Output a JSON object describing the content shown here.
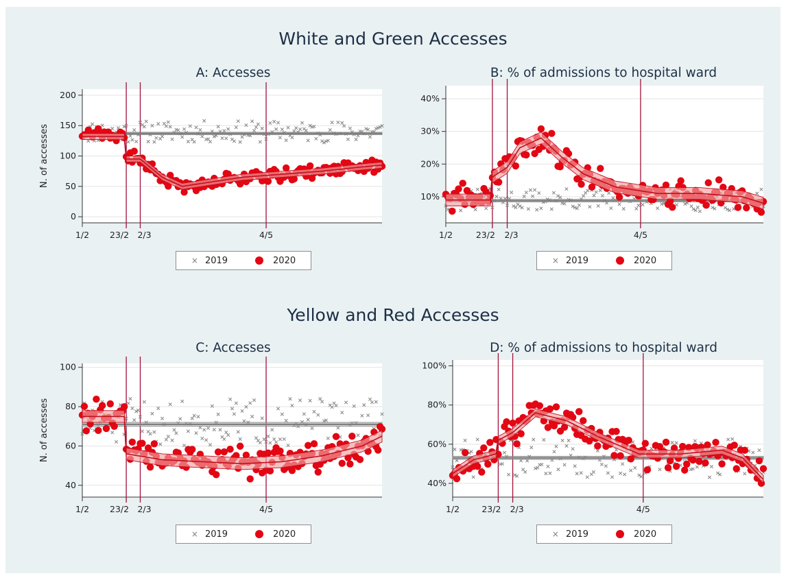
{
  "figure": {
    "sections": [
      "White and Green Accesses",
      "Yellow and Red Accesses"
    ]
  },
  "legend": {
    "series_2019": "2019",
    "series_2020": "2020"
  },
  "colors": {
    "series_2019": "#8c8c8c",
    "series_2020": "#e30613",
    "event_line": "#a3123b",
    "background": "#eaf1f3"
  },
  "chart_data": [
    {
      "id": "A",
      "type": "scatter",
      "title": "A: Accesses",
      "ylabel": "N. of accesses",
      "xlabel": "",
      "x_ticks": [
        "1/2",
        "23/2",
        "2/3",
        "4/5"
      ],
      "x_tick_days": [
        0,
        22,
        29,
        92
      ],
      "event_lines_days": [
        22,
        29,
        92
      ],
      "ylim": [
        -10,
        210
      ],
      "y_ticks": [
        0,
        50,
        100,
        150,
        200
      ],
      "y_tick_labels": [
        "0",
        "50",
        "100",
        "150",
        "200"
      ],
      "x_range_days": [
        0,
        150
      ],
      "grid": true,
      "legend": "bottom",
      "series": [
        {
          "name": "2019",
          "marker": "x",
          "mean": 140,
          "spread": 18,
          "seed": 11,
          "fit_days": [
            0,
            150
          ],
          "fit_values": [
            137,
            137
          ],
          "band": 2
        },
        {
          "name": "2020",
          "marker": "o",
          "knots_days": [
            0,
            10,
            21,
            22,
            29,
            40,
            50,
            60,
            80,
            100,
            120,
            140,
            150
          ],
          "knots_values": [
            140,
            137,
            132,
            100,
            95,
            65,
            50,
            55,
            65,
            70,
            75,
            82,
            85
          ],
          "spread": 13,
          "seed": 21,
          "fit_days": [
            0,
            21,
            22,
            29,
            40,
            50,
            60,
            80,
            100,
            120,
            140,
            150
          ],
          "fit_values": [
            132,
            132,
            95,
            95,
            65,
            50,
            55,
            65,
            70,
            75,
            82,
            85
          ],
          "band": 5
        }
      ]
    },
    {
      "id": "B",
      "type": "scatter",
      "title": "B: % of admissions to hospital ward",
      "ylabel": "",
      "xlabel": "",
      "x_ticks": [
        "1/2",
        "23/2",
        "2/3",
        "4/5"
      ],
      "x_tick_days": [
        0,
        22,
        29,
        92
      ],
      "event_lines_days": [
        22,
        29,
        92
      ],
      "ylim": [
        0.02,
        0.44
      ],
      "y_ticks": [
        0.1,
        0.2,
        0.3,
        0.4
      ],
      "y_tick_labels": [
        "10%",
        "20%",
        "30%",
        "40%"
      ],
      "x_range_days": [
        0,
        150
      ],
      "grid": true,
      "legend": "bottom",
      "series": [
        {
          "name": "2019",
          "marker": "x",
          "mean": 0.09,
          "spread": 0.035,
          "seed": 31,
          "fit_days": [
            0,
            150
          ],
          "fit_values": [
            0.088,
            0.088
          ],
          "band": 0.004
        },
        {
          "name": "2020",
          "marker": "o",
          "knots_days": [
            0,
            21,
            22,
            29,
            35,
            45,
            55,
            65,
            80,
            100,
            120,
            140,
            150
          ],
          "knots_values": [
            0.095,
            0.095,
            0.16,
            0.19,
            0.25,
            0.28,
            0.22,
            0.17,
            0.13,
            0.11,
            0.11,
            0.1,
            0.08
          ],
          "spread": 0.05,
          "seed": 41,
          "fit_days": [
            0,
            21,
            22,
            29,
            35,
            45,
            55,
            65,
            80,
            100,
            120,
            140,
            150
          ],
          "fit_values": [
            0.09,
            0.09,
            0.16,
            0.19,
            0.25,
            0.28,
            0.22,
            0.17,
            0.13,
            0.11,
            0.11,
            0.1,
            0.08
          ],
          "band": 0.018
        }
      ]
    },
    {
      "id": "C",
      "type": "scatter",
      "title": "C: Accesses",
      "ylabel": "N. of accesses",
      "xlabel": "",
      "x_ticks": [
        "1/2",
        "23/2",
        "2/3",
        "4/5"
      ],
      "x_tick_days": [
        0,
        22,
        29,
        92
      ],
      "event_lines_days": [
        22,
        29,
        92
      ],
      "ylim": [
        34,
        102
      ],
      "y_ticks": [
        40,
        60,
        80,
        100
      ],
      "y_tick_labels": [
        "40",
        "60",
        "80",
        "100"
      ],
      "x_range_days": [
        0,
        150
      ],
      "grid": true,
      "legend": "bottom",
      "series": [
        {
          "name": "2019",
          "marker": "x",
          "mean": 72,
          "spread": 12,
          "seed": 51,
          "fit_days": [
            0,
            150
          ],
          "fit_values": [
            71,
            71
          ],
          "band": 1
        },
        {
          "name": "2020",
          "marker": "o",
          "knots_days": [
            0,
            21,
            22,
            40,
            60,
            80,
            100,
            120,
            140,
            150
          ],
          "knots_values": [
            75,
            75,
            58,
            53,
            52,
            51,
            52,
            55,
            60,
            65
          ],
          "spread": 10,
          "seed": 61,
          "fit_days": [
            0,
            21,
            22,
            40,
            60,
            80,
            100,
            120,
            140,
            150
          ],
          "fit_values": [
            75,
            75,
            56,
            53,
            52,
            51,
            52,
            55,
            60,
            65
          ],
          "band": 3
        }
      ]
    },
    {
      "id": "D",
      "type": "scatter",
      "title": "D: % of admissions to hospital ward",
      "ylabel": "",
      "xlabel": "",
      "x_ticks": [
        "1/2",
        "23/2",
        "2/3",
        "4/5"
      ],
      "x_tick_days": [
        0,
        22,
        29,
        92
      ],
      "event_lines_days": [
        22,
        29,
        92
      ],
      "ylim": [
        0.33,
        1.03
      ],
      "y_ticks": [
        0.4,
        0.6,
        0.8,
        1.0
      ],
      "y_tick_labels": [
        "40%",
        "60%",
        "80%",
        "100%"
      ],
      "x_range_days": [
        0,
        150
      ],
      "grid": true,
      "legend": "bottom",
      "series": [
        {
          "name": "2019",
          "marker": "x",
          "mean": 0.53,
          "spread": 0.1,
          "seed": 71,
          "fit_days": [
            0,
            150
          ],
          "fit_values": [
            0.53,
            0.53
          ],
          "band": 0.008
        },
        {
          "name": "2020",
          "marker": "o",
          "knots_days": [
            0,
            10,
            21,
            22,
            29,
            40,
            55,
            70,
            90,
            110,
            130,
            140,
            150
          ],
          "knots_values": [
            0.45,
            0.52,
            0.55,
            0.63,
            0.66,
            0.76,
            0.72,
            0.64,
            0.55,
            0.55,
            0.57,
            0.53,
            0.42
          ],
          "spread": 0.09,
          "seed": 81,
          "fit_days": [
            0,
            10,
            21,
            22,
            29,
            40,
            55,
            70,
            90,
            110,
            130,
            140,
            150
          ],
          "fit_values": [
            0.45,
            0.52,
            0.55,
            0.62,
            0.66,
            0.76,
            0.72,
            0.64,
            0.55,
            0.55,
            0.57,
            0.53,
            0.42
          ],
          "band": 0.02
        }
      ]
    }
  ]
}
